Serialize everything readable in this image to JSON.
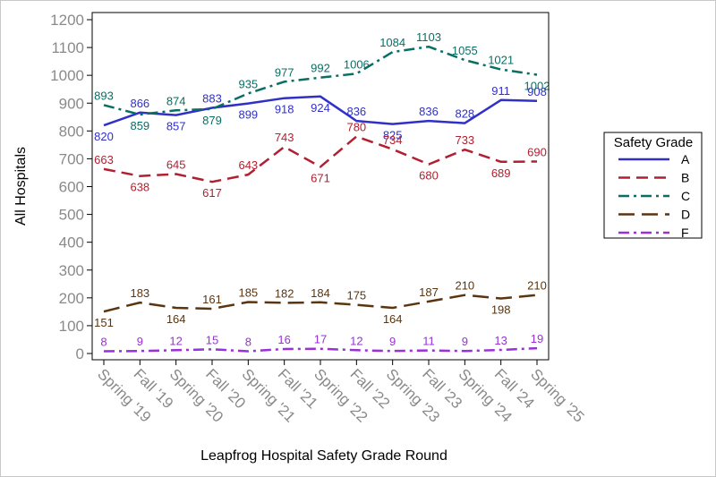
{
  "chart_data": {
    "type": "line",
    "title": "",
    "xlabel": "Leapfrog Hospital Safety Grade Round",
    "ylabel": "All Hospitals",
    "ylim": [
      0,
      1200
    ],
    "yticks": [
      0,
      100,
      200,
      300,
      400,
      500,
      600,
      700,
      800,
      900,
      1000,
      1100,
      1200
    ],
    "categories": [
      "Spring '19",
      "Fall '19",
      "Spring '20",
      "Fall '20",
      "Spring '21",
      "Fall '21",
      "Spring '22",
      "Fall '22",
      "Spring '23",
      "Fall '23",
      "Spring '24",
      "Fall '24",
      "Spring '25"
    ],
    "legend": {
      "title": "Safety Grade",
      "position": "right"
    },
    "series": [
      {
        "name": "A",
        "color": "#3030c8",
        "dash": "solid",
        "values": [
          820,
          866,
          857,
          883,
          899,
          918,
          924,
          836,
          825,
          836,
          828,
          911,
          908
        ],
        "label_pos": [
          "below",
          "above",
          "below",
          "above",
          "below",
          "below",
          "below",
          "above",
          "below",
          "above",
          "above",
          "above",
          "above"
        ]
      },
      {
        "name": "B",
        "color": "#b02030",
        "dash": "dash",
        "values": [
          663,
          638,
          645,
          617,
          643,
          743,
          671,
          780,
          734,
          680,
          733,
          689,
          690
        ],
        "label_pos": [
          "above",
          "below",
          "above",
          "below",
          "above",
          "above",
          "below",
          "above",
          "above",
          "below",
          "above",
          "below",
          "above"
        ]
      },
      {
        "name": "C",
        "color": "#0a6e64",
        "dash": "dashdot",
        "values": [
          893,
          859,
          874,
          879,
          935,
          977,
          992,
          1006,
          1084,
          1103,
          1055,
          1021,
          1002
        ],
        "label_pos": [
          "above",
          "below",
          "above",
          "below",
          "above",
          "above",
          "above",
          "above",
          "above",
          "above",
          "above",
          "above",
          "below"
        ]
      },
      {
        "name": "D",
        "color": "#5a3510",
        "dash": "longdash",
        "values": [
          151,
          183,
          164,
          161,
          185,
          182,
          184,
          175,
          164,
          187,
          210,
          198,
          210
        ],
        "label_pos": [
          "below",
          "above",
          "below",
          "above",
          "above",
          "above",
          "above",
          "above",
          "below",
          "above",
          "above",
          "below",
          "above"
        ]
      },
      {
        "name": "F",
        "color": "#9a30d8",
        "dash": "dashdot",
        "values": [
          8,
          9,
          12,
          15,
          8,
          16,
          17,
          12,
          9,
          11,
          9,
          13,
          19
        ],
        "label_pos": [
          "above",
          "above",
          "above",
          "above",
          "above",
          "above",
          "above",
          "above",
          "above",
          "above",
          "above",
          "above",
          "above"
        ]
      }
    ]
  }
}
